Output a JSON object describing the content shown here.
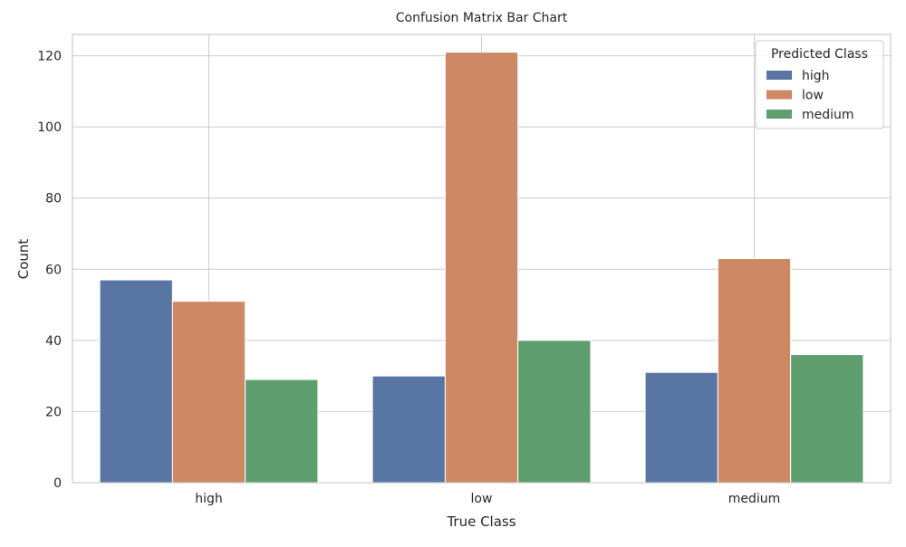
{
  "chart_data": {
    "type": "bar",
    "title": "Confusion Matrix Bar Chart",
    "xlabel": "True Class",
    "ylabel": "Count",
    "categories": [
      "high",
      "low",
      "medium"
    ],
    "series": [
      {
        "name": "high",
        "color": "#5875a4",
        "values": [
          57,
          30,
          31
        ]
      },
      {
        "name": "low",
        "color": "#cc8963",
        "values": [
          51,
          121,
          63
        ]
      },
      {
        "name": "medium",
        "color": "#5f9e6e",
        "values": [
          29,
          40,
          36
        ]
      }
    ],
    "ylim": [
      0,
      126
    ],
    "yticks": [
      0,
      20,
      40,
      60,
      80,
      100,
      120
    ],
    "grid": true,
    "legend": {
      "title": "Predicted Class",
      "placement": "top-right"
    }
  }
}
